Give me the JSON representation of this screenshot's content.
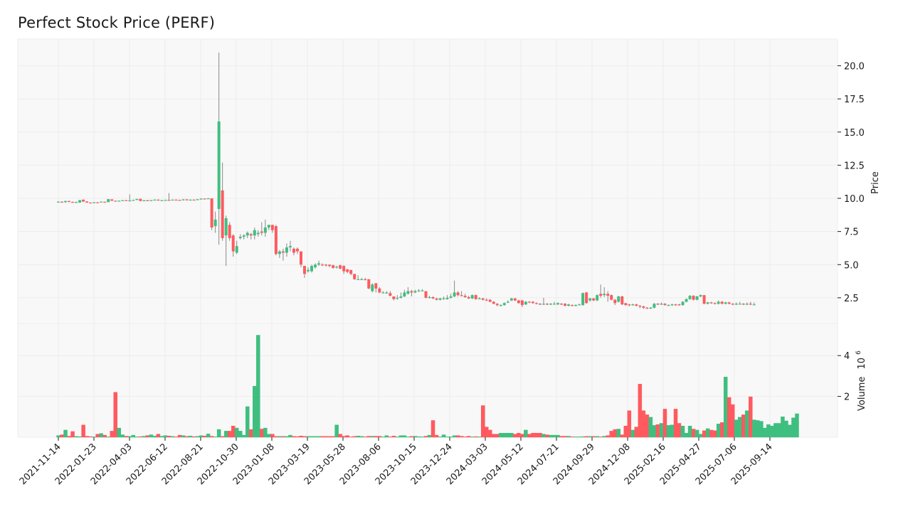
{
  "title": "Perfect Stock Price (PERF)",
  "colors": {
    "up": "#3fbf7f",
    "down": "#ff5a5f",
    "wick": "#888888",
    "panel_bg": "#f8f8f8",
    "grid": "#ececec"
  },
  "chart_data": [
    {
      "type": "candlestick",
      "title": "Perfect Stock Price (PERF)",
      "xlabel": "",
      "ylabel": "Price",
      "y_ticks": [
        2.5,
        5.0,
        7.5,
        10.0,
        12.5,
        15.0,
        17.5,
        20.0
      ],
      "y_tick_labels": [
        "2.5",
        "5.0",
        "7.5",
        "10.0",
        "12.5",
        "15.0",
        "17.5",
        "20.0"
      ],
      "ylim": [
        0.5,
        22
      ],
      "x_tick_labels": [
        "2021-11-14",
        "2022-01-23",
        "2022-04-03",
        "2022-06-12",
        "2022-08-21",
        "2022-10-30",
        "2023-01-08",
        "2023-03-19",
        "2023-05-28",
        "2023-08-06",
        "2023-10-15",
        "2023-12-24",
        "2024-03-03",
        "2024-05-12",
        "2024-07-21",
        "2024-09-29",
        "2024-12-08",
        "2025-02-16",
        "2025-04-27",
        "2025-07-06",
        "2025-09-14"
      ],
      "frequency": "weekly",
      "grid": true,
      "ohlc_segments_note": "open/close per week, approximated from pixels",
      "series": [
        {
          "name": "open",
          "values": [
            9.75,
            9.74,
            9.78,
            9.72,
            9.74,
            9.7,
            9.68,
            9.8,
            9.85,
            9.72,
            9.7,
            9.7,
            9.72,
            9.72,
            9.75,
            9.76,
            9.8,
            9.85,
            9.82,
            9.86,
            9.85,
            9.86,
            9.86,
            9.86,
            9.86,
            9.86,
            9.85,
            9.86,
            9.86,
            9.87,
            9.92,
            9.88,
            9.87,
            9.87,
            9.9,
            9.95,
            9.88,
            9.93,
            9.95,
            9.9,
            9.9,
            9.93,
            9.93,
            9.95,
            9.98,
            9.97,
            9.97,
            9.95,
            9.98,
            10.0,
            10.02,
            10.05
          ]
        },
        {
          "name": "close",
          "values": [
            9.74,
            9.76,
            9.72,
            9.78,
            9.7,
            9.72,
            9.69,
            9.7,
            9.7,
            9.8,
            9.72,
            9.7,
            9.71,
            9.75,
            9.74,
            9.78,
            9.85,
            9.83,
            9.86,
            9.84,
            9.86,
            9.86,
            9.84,
            9.86,
            9.86,
            9.86,
            9.86,
            9.87,
            9.86,
            9.88,
            9.88,
            9.92,
            9.87,
            9.9,
            9.88,
            9.9,
            9.93,
            9.9,
            9.9,
            9.93,
            9.94,
            9.95,
            9.97,
            9.97,
            9.98,
            9.97,
            10.0,
            9.96,
            10.0,
            10.02,
            10.05,
            10.0
          ]
        }
      ]
    },
    {
      "type": "bar",
      "title": "",
      "ylabel": "Volume",
      "y_scale_note": "1e6",
      "y_ticks": [
        2,
        4
      ],
      "y_tick_labels": [
        "2",
        "4"
      ],
      "ylim": [
        0,
        5.6
      ]
    }
  ],
  "axes": {
    "price_label": "Price",
    "volume_label": "Volume",
    "volume_exponent_base": "10",
    "volume_exponent": "6"
  },
  "candles": [
    [
      9.72,
      9.75,
      9.7,
      9.78
    ],
    [
      9.74,
      9.73,
      9.7,
      9.78
    ],
    [
      9.72,
      9.8,
      9.65,
      9.82
    ],
    [
      9.8,
      9.74,
      9.7,
      9.82
    ],
    [
      9.73,
      9.71,
      9.68,
      9.76
    ],
    [
      9.71,
      9.72,
      9.65,
      9.76
    ],
    [
      9.68,
      9.86,
      9.66,
      9.88
    ],
    [
      9.9,
      9.76,
      9.72,
      9.92
    ],
    [
      9.76,
      9.68,
      9.66,
      9.78
    ],
    [
      9.68,
      9.66,
      9.64,
      9.7
    ],
    [
      9.66,
      9.7,
      9.64,
      9.72
    ],
    [
      9.7,
      9.68,
      9.66,
      9.72
    ],
    [
      9.7,
      9.75,
      9.68,
      9.76
    ],
    [
      9.74,
      9.72,
      9.7,
      9.76
    ],
    [
      9.72,
      9.94,
      9.7,
      9.96
    ],
    [
      9.92,
      9.82,
      9.8,
      9.94
    ],
    [
      9.82,
      9.8,
      9.78,
      9.84
    ],
    [
      9.8,
      9.82,
      9.78,
      9.84
    ],
    [
      9.82,
      9.86,
      9.8,
      9.88
    ],
    [
      9.86,
      9.84,
      9.82,
      9.88
    ],
    [
      9.84,
      9.84,
      9.82,
      10.3
    ],
    [
      9.84,
      9.88,
      9.82,
      9.9
    ],
    [
      9.88,
      9.95,
      9.86,
      9.97
    ],
    [
      9.96,
      9.8,
      9.78,
      9.98
    ],
    [
      9.8,
      9.85,
      9.78,
      9.88
    ],
    [
      9.85,
      9.83,
      9.8,
      9.88
    ],
    [
      9.83,
      9.86,
      9.82,
      9.88
    ],
    [
      9.86,
      9.9,
      9.84,
      9.92
    ],
    [
      9.9,
      9.84,
      9.82,
      9.92
    ],
    [
      9.84,
      9.86,
      9.82,
      9.88
    ],
    [
      9.86,
      9.88,
      9.84,
      9.9
    ],
    [
      9.88,
      9.86,
      9.84,
      10.4
    ],
    [
      9.86,
      9.9,
      9.84,
      9.92
    ],
    [
      9.9,
      9.88,
      9.86,
      9.92
    ],
    [
      9.88,
      9.86,
      9.84,
      9.9
    ],
    [
      9.86,
      9.92,
      9.84,
      9.94
    ],
    [
      9.92,
      9.86,
      9.84,
      9.94
    ],
    [
      9.86,
      9.9,
      9.84,
      9.92
    ],
    [
      9.9,
      9.88,
      9.86,
      9.92
    ],
    [
      9.88,
      9.93,
      9.86,
      9.95
    ],
    [
      9.93,
      9.98,
      9.9,
      10.0
    ],
    [
      9.98,
      9.96,
      9.94,
      10.0
    ],
    [
      9.98,
      10.0,
      9.96,
      10.02
    ],
    [
      10.0,
      7.8,
      7.6,
      10.0
    ],
    [
      7.9,
      8.4,
      7.4,
      9.0
    ],
    [
      9.2,
      15.8,
      6.5,
      21.0
    ],
    [
      10.6,
      7.0,
      6.8,
      12.7
    ],
    [
      7.2,
      8.5,
      4.9,
      8.7
    ],
    [
      8.0,
      7.0,
      6.8,
      8.2
    ],
    [
      7.2,
      6.0,
      5.6,
      7.3
    ],
    [
      5.9,
      6.4,
      5.8,
      6.8
    ],
    [
      7.0,
      7.1,
      6.9,
      7.3
    ],
    [
      7.1,
      7.2,
      6.9,
      7.3
    ],
    [
      7.2,
      7.4,
      7.0,
      7.5
    ],
    [
      7.3,
      7.2,
      6.9,
      7.4
    ],
    [
      7.2,
      7.6,
      6.9,
      7.8
    ],
    [
      7.3,
      7.4,
      7.1,
      7.6
    ],
    [
      7.5,
      7.4,
      7.2,
      8.2
    ],
    [
      7.4,
      7.8,
      7.1,
      8.4
    ],
    [
      7.8,
      8.0,
      7.6,
      8.0
    ],
    [
      8.0,
      7.6,
      7.4,
      8.0
    ],
    [
      7.9,
      5.8,
      5.7,
      8.0
    ],
    [
      5.8,
      6.0,
      5.5,
      6.1
    ],
    [
      6.0,
      5.9,
      5.3,
      6.2
    ],
    [
      5.9,
      6.3,
      5.6,
      6.6
    ],
    [
      6.3,
      6.4,
      6.0,
      6.8
    ],
    [
      6.2,
      5.9,
      5.7,
      6.3
    ],
    [
      6.2,
      6.0,
      5.8,
      6.3
    ],
    [
      6.0,
      5.0,
      4.8,
      6.0
    ],
    [
      4.9,
      4.3,
      4.0,
      4.9
    ],
    [
      4.5,
      4.6,
      4.4,
      4.8
    ],
    [
      4.5,
      4.9,
      4.4,
      5.0
    ],
    [
      4.8,
      5.0,
      4.7,
      5.1
    ],
    [
      5.0,
      5.1,
      4.9,
      5.3
    ],
    [
      5.0,
      4.95,
      4.9,
      5.1
    ],
    [
      5.0,
      4.95,
      4.85,
      5.05
    ],
    [
      5.0,
      4.9,
      4.8,
      5.0
    ],
    [
      4.95,
      4.75,
      4.7,
      5.0
    ],
    [
      4.8,
      4.85,
      4.7,
      4.9
    ],
    [
      4.95,
      4.7,
      4.65,
      5.0
    ],
    [
      4.9,
      4.5,
      4.3,
      4.95
    ],
    [
      4.65,
      4.45,
      4.35,
      4.65
    ],
    [
      4.6,
      4.3,
      4.2,
      4.6
    ],
    [
      4.3,
      3.9,
      3.85,
      4.3
    ],
    [
      3.9,
      3.9,
      3.85,
      4.2
    ],
    [
      3.9,
      3.9,
      3.85,
      4.0
    ],
    [
      3.9,
      3.85,
      3.8,
      4.0
    ],
    [
      3.9,
      3.2,
      3.15,
      3.9
    ],
    [
      3.0,
      3.5,
      2.9,
      3.6
    ],
    [
      3.6,
      3.2,
      2.9,
      3.6
    ],
    [
      3.2,
      2.9,
      2.85,
      3.3
    ],
    [
      2.9,
      2.9,
      2.85,
      3.0
    ],
    [
      2.9,
      2.9,
      2.8,
      3.0
    ],
    [
      2.85,
      2.65,
      2.6,
      3.0
    ],
    [
      2.6,
      2.4,
      2.3,
      2.6
    ],
    [
      2.5,
      2.5,
      2.35,
      2.7
    ],
    [
      2.5,
      2.6,
      2.45,
      2.9
    ],
    [
      2.6,
      2.9,
      2.55,
      3.1
    ],
    [
      2.8,
      3.0,
      2.75,
      3.3
    ],
    [
      3.0,
      2.9,
      2.6,
      3.1
    ],
    [
      2.9,
      3.0,
      2.85,
      3.1
    ],
    [
      3.0,
      3.05,
      2.95,
      3.15
    ],
    [
      3.05,
      3.05,
      3.0,
      3.15
    ],
    [
      3.0,
      2.5,
      2.45,
      3.0
    ],
    [
      2.5,
      2.55,
      2.45,
      2.65
    ],
    [
      2.55,
      2.45,
      2.4,
      2.6
    ],
    [
      2.45,
      2.35,
      2.3,
      2.5
    ],
    [
      2.35,
      2.45,
      2.3,
      2.5
    ],
    [
      2.4,
      2.45,
      2.35,
      2.6
    ],
    [
      2.4,
      2.5,
      2.35,
      2.7
    ],
    [
      2.5,
      2.6,
      2.45,
      2.8
    ],
    [
      2.6,
      2.9,
      2.55,
      3.8
    ],
    [
      2.9,
      2.7,
      2.6,
      3.0
    ],
    [
      2.7,
      2.65,
      2.6,
      3.0
    ],
    [
      2.65,
      2.55,
      2.5,
      2.8
    ],
    [
      2.55,
      2.45,
      2.4,
      2.65
    ],
    [
      2.45,
      2.7,
      2.4,
      2.75
    ],
    [
      2.7,
      2.4,
      2.35,
      2.75
    ],
    [
      2.45,
      2.45,
      2.4,
      2.55
    ],
    [
      2.45,
      2.35,
      2.3,
      2.5
    ],
    [
      2.35,
      2.3,
      2.25,
      2.45
    ],
    [
      2.35,
      2.2,
      2.15,
      2.4
    ],
    [
      2.2,
      2.05,
      2.0,
      2.25
    ],
    [
      2.05,
      1.95,
      1.85,
      2.1
    ],
    [
      1.9,
      1.95,
      1.85,
      2.0
    ],
    [
      1.95,
      2.1,
      1.9,
      2.15
    ],
    [
      2.15,
      2.2,
      2.1,
      2.3
    ],
    [
      2.3,
      2.45,
      2.25,
      2.5
    ],
    [
      2.45,
      2.3,
      2.25,
      2.5
    ],
    [
      2.3,
      2.1,
      2.05,
      2.35
    ],
    [
      2.3,
      1.95,
      1.8,
      2.35
    ],
    [
      2.0,
      2.2,
      1.95,
      2.25
    ],
    [
      2.2,
      2.15,
      2.1,
      2.25
    ],
    [
      2.2,
      2.1,
      2.05,
      2.25
    ],
    [
      2.1,
      2.05,
      2.0,
      2.15
    ],
    [
      2.05,
      2.0,
      1.95,
      2.1
    ],
    [
      2.0,
      2.05,
      1.95,
      2.5
    ],
    [
      2.05,
      2.0,
      1.95,
      2.1
    ],
    [
      2.0,
      2.05,
      1.95,
      2.1
    ],
    [
      2.05,
      2.05,
      2.0,
      2.2
    ],
    [
      2.0,
      2.1,
      1.95,
      2.15
    ],
    [
      2.05,
      2.0,
      1.95,
      2.1
    ],
    [
      2.05,
      1.9,
      1.85,
      2.1
    ],
    [
      1.9,
      2.0,
      1.85,
      2.05
    ],
    [
      1.95,
      1.9,
      1.85,
      2.0
    ],
    [
      1.9,
      1.95,
      1.85,
      2.0
    ],
    [
      2.0,
      2.0,
      1.95,
      2.05
    ],
    [
      1.95,
      2.85,
      1.9,
      2.9
    ],
    [
      2.9,
      2.1,
      2.05,
      2.95
    ],
    [
      2.3,
      2.45,
      2.2,
      2.5
    ],
    [
      2.45,
      2.3,
      2.25,
      2.5
    ],
    [
      2.3,
      2.7,
      2.25,
      2.75
    ],
    [
      2.8,
      2.65,
      2.5,
      3.5
    ],
    [
      2.7,
      2.8,
      2.55,
      3.3
    ],
    [
      2.8,
      2.65,
      2.2,
      3.0
    ],
    [
      2.7,
      2.35,
      2.3,
      2.75
    ],
    [
      2.35,
      2.1,
      1.95,
      2.4
    ],
    [
      2.2,
      2.6,
      2.15,
      2.65
    ],
    [
      2.6,
      2.0,
      1.95,
      2.65
    ],
    [
      2.1,
      1.95,
      1.9,
      2.1
    ],
    [
      2.0,
      1.95,
      1.85,
      2.05
    ],
    [
      1.95,
      2.0,
      1.9,
      2.05
    ],
    [
      2.0,
      1.9,
      1.85,
      2.05
    ],
    [
      1.9,
      1.85,
      1.7,
      1.95
    ],
    [
      1.85,
      1.75,
      1.65,
      1.9
    ],
    [
      1.75,
      1.7,
      1.65,
      1.8
    ],
    [
      1.7,
      1.75,
      1.65,
      1.8
    ],
    [
      1.75,
      2.05,
      1.7,
      2.1
    ],
    [
      2.05,
      2.0,
      1.95,
      2.1
    ],
    [
      2.0,
      2.05,
      1.95,
      2.15
    ],
    [
      2.05,
      1.95,
      1.9,
      2.1
    ],
    [
      1.95,
      1.95,
      1.9,
      2.0
    ],
    [
      1.95,
      2.0,
      1.9,
      2.05
    ],
    [
      2.0,
      1.95,
      1.9,
      2.05
    ],
    [
      2.0,
      1.95,
      1.9,
      2.05
    ],
    [
      1.95,
      2.2,
      1.9,
      2.25
    ],
    [
      2.2,
      2.4,
      2.15,
      2.45
    ],
    [
      2.4,
      2.65,
      2.35,
      2.7
    ],
    [
      2.65,
      2.35,
      2.3,
      2.7
    ],
    [
      2.35,
      2.6,
      2.3,
      2.65
    ],
    [
      2.6,
      2.7,
      2.55,
      2.75
    ],
    [
      2.7,
      2.05,
      2.0,
      2.7
    ],
    [
      2.05,
      2.15,
      2.0,
      2.2
    ],
    [
      2.15,
      2.1,
      2.05,
      2.2
    ],
    [
      2.1,
      2.05,
      2.0,
      2.15
    ],
    [
      2.05,
      2.2,
      2.0,
      2.3
    ],
    [
      2.2,
      2.05,
      2.0,
      2.25
    ],
    [
      2.05,
      2.15,
      2.0,
      2.2
    ],
    [
      2.15,
      2.05,
      2.0,
      2.2
    ],
    [
      2.05,
      2.0,
      1.95,
      2.1
    ],
    [
      2.0,
      2.05,
      1.95,
      2.15
    ],
    [
      2.05,
      2.05,
      2.0,
      2.2
    ],
    [
      2.05,
      2.0,
      1.95,
      2.1
    ],
    [
      2.0,
      2.05,
      1.95,
      2.15
    ],
    [
      2.05,
      2.0,
      1.95,
      2.2
    ],
    [
      2.0,
      2.0,
      1.95,
      2.15
    ]
  ],
  "volumes": [
    0.08,
    0.12,
    0.35,
    0.05,
    0.28,
    0.04,
    0.03,
    0.6,
    0.05,
    0.03,
    0.02,
    0.15,
    0.18,
    0.1,
    0.02,
    0.3,
    2.2,
    0.45,
    0.12,
    0.05,
    0.04,
    0.1,
    0.02,
    0.03,
    0.05,
    0.08,
    0.12,
    0.06,
    0.15,
    0.05,
    0.08,
    0.06,
    0.04,
    0.02,
    0.1,
    0.08,
    0.04,
    0.06,
    0.03,
    0.04,
    0.08,
    0.06,
    0.16,
    0.05,
    0.02,
    0.38,
    0.04,
    0.3,
    0.3,
    0.55,
    0.45,
    0.3,
    0.1,
    1.5,
    0.38,
    2.5,
    5.0,
    0.4,
    0.45,
    0.15,
    0.15,
    0.04,
    0.04,
    0.04,
    0.04,
    0.1,
    0.04,
    0.03,
    0.06,
    0.04,
    0.04,
    0.04,
    0.04,
    0.04,
    0.04,
    0.04,
    0.04,
    0.04,
    0.6,
    0.15,
    0.05,
    0.08,
    0.02,
    0.04,
    0.06,
    0.04,
    0.02,
    0.05,
    0.05,
    0.05,
    0.05,
    0.02,
    0.08,
    0.02,
    0.06,
    0.02,
    0.08,
    0.08,
    0.02,
    0.04,
    0.05,
    0.03,
    0.02,
    0.05,
    0.1,
    0.82,
    0.1,
    0.02,
    0.12,
    0.02,
    0.02,
    0.08,
    0.08,
    0.05,
    0.02,
    0.05,
    0.02,
    0.03,
    0.02,
    1.55,
    0.5,
    0.35,
    0.15,
    0.15,
    0.2,
    0.2,
    0.2,
    0.2,
    0.15,
    0.2,
    0.15,
    0.35,
    0.15,
    0.2,
    0.2,
    0.2,
    0.15,
    0.12,
    0.1,
    0.1,
    0.1,
    0.05,
    0.05,
    0.05,
    0.02,
    0.02,
    0.02,
    0.03,
    0.04,
    0.04,
    0.04,
    0.04,
    0.02,
    0.05,
    0.08,
    0.3,
    0.38,
    0.4,
    0.12,
    0.55,
    1.3,
    0.35,
    0.5,
    2.6,
    1.3,
    1.1,
    0.98,
    0.58,
    0.62,
    0.68,
    1.38,
    0.58,
    0.6,
    1.38,
    0.68,
    0.55,
    0.2,
    0.55,
    0.4,
    0.35,
    0.15,
    0.32,
    0.42,
    0.35,
    0.32,
    0.65,
    0.72,
    2.95,
    1.95,
    1.6,
    0.85,
    0.98,
    1.1,
    1.3,
    1.98,
    0.85,
    0.82,
    0.78,
    0.45,
    0.62,
    0.55,
    0.68,
    0.68,
    1.0,
    0.8,
    0.6,
    0.95,
    1.15
  ]
}
